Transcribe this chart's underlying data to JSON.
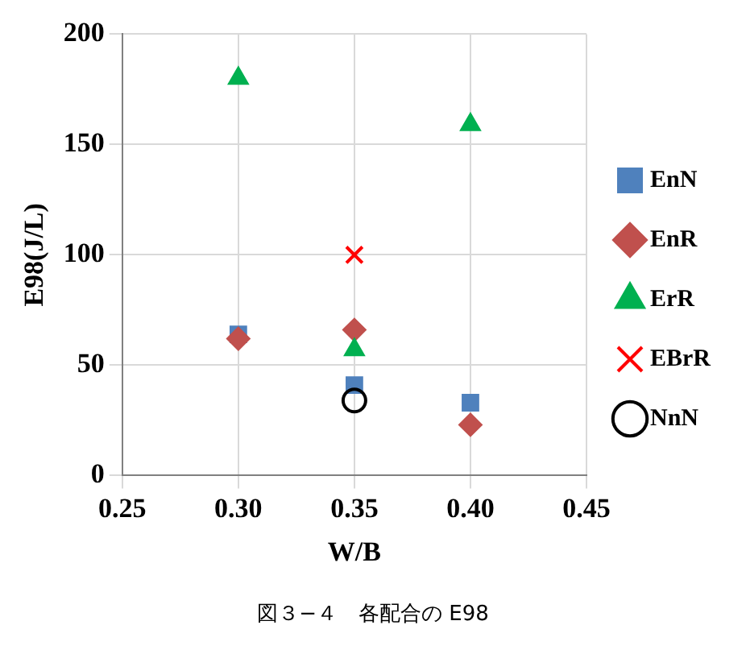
{
  "chart_data": {
    "type": "scatter",
    "xlabel": "W/B",
    "ylabel": "E98(J/L)",
    "annotations": [
      "図３−４　各配合の E98"
    ],
    "xlim": [
      0.25,
      0.45
    ],
    "xticks": [
      {
        "value": 0.25,
        "label": "0.25"
      },
      {
        "value": 0.3,
        "label": "0.30"
      },
      {
        "value": 0.35,
        "label": "0.35"
      },
      {
        "value": 0.4,
        "label": "0.40"
      },
      {
        "value": 0.45,
        "label": "0.45"
      }
    ],
    "ylim": [
      0,
      200
    ],
    "yticks": [
      0,
      50,
      100,
      150,
      200
    ],
    "grid": true,
    "legend": "right",
    "series": [
      {
        "name": "EnN",
        "color": "#4f81bd",
        "marker": "square",
        "x": [
          0.3,
          0.35,
          0.4
        ],
        "values": [
          64,
          41,
          33
        ]
      },
      {
        "name": "EnR",
        "color": "#c0504d",
        "marker": "diamond",
        "x": [
          0.3,
          0.35,
          0.4
        ],
        "values": [
          62,
          66,
          23
        ]
      },
      {
        "name": "ErR",
        "color": "#00b050",
        "marker": "triangle",
        "x": [
          0.3,
          0.35,
          0.4
        ],
        "values": [
          180,
          57,
          159
        ]
      },
      {
        "name": "EBrR",
        "color": "#ff0000",
        "marker": "cross",
        "x": [
          0.35
        ],
        "values": [
          100
        ]
      },
      {
        "name": "NnN",
        "color": "#000000",
        "marker": "circle",
        "x": [
          0.35
        ],
        "values": [
          34
        ]
      }
    ]
  }
}
